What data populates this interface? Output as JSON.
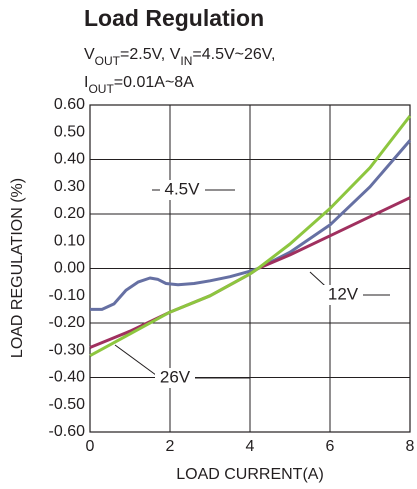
{
  "chart_data": {
    "type": "line",
    "title": "Load Regulation",
    "subtitle_lines": [
      [
        {
          "text": "V"
        },
        {
          "text": "OUT",
          "sub": true
        },
        {
          "text": "=2.5V, V"
        },
        {
          "text": "IN",
          "sub": true
        },
        {
          "text": "=4.5V~26V,"
        }
      ],
      [
        {
          "text": "I"
        },
        {
          "text": "OUT",
          "sub": true
        },
        {
          "text": "=0.01A~8A"
        }
      ]
    ],
    "x_label": "LOAD CURRENT(A)",
    "y_label": "LOAD REGULATION (%)",
    "xlim": [
      0,
      8
    ],
    "xticks": [
      0,
      2,
      4,
      6,
      8
    ],
    "ylim": [
      -0.6,
      0.6
    ],
    "yticks": [
      {
        "value": -0.6,
        "label": "-0.60"
      },
      {
        "value": -0.5,
        "label": "-0.50"
      },
      {
        "value": -0.4,
        "label": "-0.40"
      },
      {
        "value": -0.3,
        "label": "-0.30"
      },
      {
        "value": -0.2,
        "label": "-0.20"
      },
      {
        "value": -0.1,
        "label": "-0.10"
      },
      {
        "value": 0,
        "label": "0.00"
      },
      {
        "value": 0.1,
        "label": "0.10"
      },
      {
        "value": 0.2,
        "label": "0.20"
      },
      {
        "value": 0.3,
        "label": "0.30"
      },
      {
        "value": 0.4,
        "label": "0.40"
      },
      {
        "value": 0.5,
        "label": "0.50"
      },
      {
        "value": 0.6,
        "label": "0.60"
      }
    ],
    "grid": true,
    "series": [
      {
        "name": "4.5V",
        "color": "#6670a3",
        "x": [
          0,
          0.3,
          0.6,
          0.9,
          1.2,
          1.5,
          1.7,
          1.9,
          2.2,
          2.6,
          3,
          3.5,
          4,
          4.2,
          5,
          6,
          7,
          8
        ],
        "values": [
          -0.15,
          -0.15,
          -0.13,
          -0.08,
          -0.05,
          -0.035,
          -0.04,
          -0.055,
          -0.06,
          -0.055,
          -0.045,
          -0.03,
          -0.01,
          0,
          0.06,
          0.16,
          0.3,
          0.47
        ]
      },
      {
        "name": "12V",
        "color": "#a0305f",
        "x": [
          0,
          0.5,
          1,
          2,
          3,
          4,
          4.2,
          5,
          6,
          7,
          8
        ],
        "values": [
          -0.29,
          -0.26,
          -0.23,
          -0.16,
          -0.1,
          -0.02,
          0,
          0.05,
          0.12,
          0.19,
          0.26
        ]
      },
      {
        "name": "26V",
        "color": "#8dc63f",
        "x": [
          0,
          0.5,
          1,
          2,
          3,
          4,
          4.2,
          5,
          6,
          7,
          8
        ],
        "values": [
          -0.32,
          -0.28,
          -0.24,
          -0.16,
          -0.1,
          -0.02,
          0,
          0.09,
          0.22,
          0.37,
          0.56
        ]
      }
    ]
  }
}
